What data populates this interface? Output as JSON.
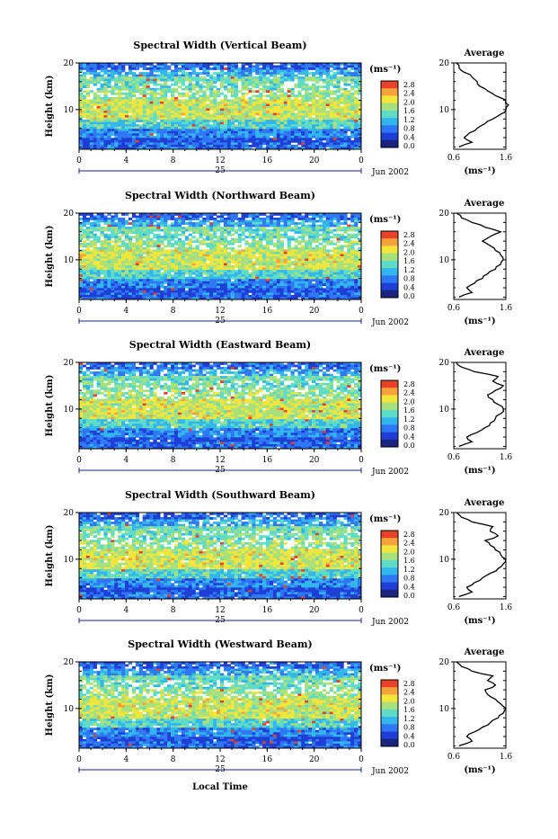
{
  "page": {
    "xlabel": "Local Time"
  },
  "chart_data": [
    {
      "type": "heatmap",
      "title": "Spectral Width (Vertical Beam)",
      "ylabel": "Height (km)",
      "yticks": [
        "20",
        "10"
      ],
      "xticks": [
        "0",
        "4",
        "8",
        "12",
        "16",
        "20",
        "0"
      ],
      "day_label": "25",
      "date_label": "Jun 2002",
      "colorbar": {
        "unit": "(ms⁻¹)",
        "ticks": [
          "2.8",
          "2.4",
          "2.0",
          "1.6",
          "1.2",
          "0.8",
          "0.4",
          "0.0"
        ]
      },
      "average": {
        "title": "Average",
        "xticks": [
          "0.6",
          "1.6"
        ],
        "xlabel": "(ms⁻¹)",
        "yticks": [
          "20",
          "10"
        ],
        "height_km": [
          2,
          3,
          4,
          5,
          6,
          7,
          8,
          9,
          10,
          11,
          12,
          13,
          14,
          15,
          16,
          17,
          18,
          19,
          20
        ],
        "width_ms": [
          0.7,
          0.95,
          0.8,
          0.9,
          1.05,
          1.2,
          1.35,
          1.5,
          1.6,
          1.65,
          1.6,
          1.4,
          1.25,
          1.1,
          1.05,
          0.95,
          0.8,
          0.7,
          0.65
        ]
      }
    },
    {
      "type": "heatmap",
      "title": "Spectral Width (Northward Beam)",
      "ylabel": "Height (km)",
      "yticks": [
        "20",
        "10"
      ],
      "xticks": [
        "0",
        "4",
        "8",
        "12",
        "16",
        "20",
        "0"
      ],
      "day_label": "25",
      "date_label": "Jun 2002",
      "colorbar": {
        "unit": "(ms⁻¹)",
        "ticks": [
          "2.8",
          "2.4",
          "2.0",
          "1.6",
          "1.2",
          "0.8",
          "0.4",
          "0.0"
        ]
      },
      "average": {
        "title": "Average",
        "xticks": [
          "0.6",
          "1.6"
        ],
        "xlabel": "(ms⁻¹)",
        "yticks": [
          "20",
          "10"
        ],
        "height_km": [
          2,
          3,
          4,
          5,
          6,
          7,
          8,
          9,
          10,
          11,
          12,
          13,
          14,
          15,
          16,
          17,
          18,
          19,
          20
        ],
        "width_ms": [
          0.7,
          0.95,
          0.85,
          1.0,
          1.15,
          1.25,
          1.4,
          1.5,
          1.55,
          1.5,
          1.4,
          1.3,
          1.15,
          1.3,
          1.5,
          1.2,
          0.95,
          0.75,
          0.65
        ]
      }
    },
    {
      "type": "heatmap",
      "title": "Spectral Width (Eastward Beam)",
      "ylabel": "Height (km)",
      "yticks": [
        "20",
        "10"
      ],
      "xticks": [
        "0",
        "4",
        "8",
        "12",
        "16",
        "20",
        "0"
      ],
      "day_label": "25",
      "date_label": "Jun 2002",
      "colorbar": {
        "unit": "(ms⁻¹)",
        "ticks": [
          "2.8",
          "2.4",
          "2.0",
          "1.6",
          "1.2",
          "0.8",
          "0.4",
          "0.0"
        ]
      },
      "average": {
        "title": "Average",
        "xticks": [
          "0.6",
          "1.6"
        ],
        "xlabel": "(ms⁻¹)",
        "yticks": [
          "20",
          "10"
        ],
        "height_km": [
          2,
          3,
          4,
          5,
          6,
          7,
          8,
          9,
          10,
          11,
          12,
          13,
          14,
          15,
          16,
          17,
          18,
          19,
          20
        ],
        "width_ms": [
          0.7,
          0.95,
          0.85,
          1.05,
          1.2,
          1.3,
          1.4,
          1.5,
          1.55,
          1.45,
          1.35,
          1.25,
          1.4,
          1.55,
          1.35,
          1.45,
          1.0,
          0.75,
          0.65
        ]
      }
    },
    {
      "type": "heatmap",
      "title": "Spectral Width (Southward Beam)",
      "ylabel": "Height (km)",
      "yticks": [
        "20",
        "10"
      ],
      "xticks": [
        "0",
        "4",
        "8",
        "12",
        "16",
        "20",
        "0"
      ],
      "day_label": "25",
      "date_label": "Jun 2002",
      "colorbar": {
        "unit": "(ms⁻¹)",
        "ticks": [
          "2.8",
          "2.4",
          "2.0",
          "1.6",
          "1.2",
          "0.8",
          "0.4",
          "0.0"
        ]
      },
      "average": {
        "title": "Average",
        "xticks": [
          "0.6",
          "1.6"
        ],
        "xlabel": "(ms⁻¹)",
        "yticks": [
          "20",
          "10"
        ],
        "height_km": [
          2,
          3,
          4,
          5,
          6,
          7,
          8,
          9,
          10,
          11,
          12,
          13,
          14,
          15,
          16,
          17,
          18,
          19,
          20
        ],
        "width_ms": [
          0.7,
          0.95,
          0.85,
          1.0,
          1.15,
          1.3,
          1.45,
          1.55,
          1.6,
          1.5,
          1.4,
          1.3,
          1.2,
          1.45,
          1.3,
          1.35,
          0.95,
          0.75,
          0.65
        ]
      }
    },
    {
      "type": "heatmap",
      "title": "Spectral Width (Westward Beam)",
      "ylabel": "Height (km)",
      "yticks": [
        "20",
        "10"
      ],
      "xticks": [
        "0",
        "4",
        "8",
        "12",
        "16",
        "20",
        "0"
      ],
      "day_label": "25",
      "date_label": "Jun 2002",
      "colorbar": {
        "unit": "(ms⁻¹)",
        "ticks": [
          "2.8",
          "2.4",
          "2.0",
          "1.6",
          "1.2",
          "0.8",
          "0.4",
          "0.0"
        ]
      },
      "average": {
        "title": "Average",
        "xticks": [
          "0.6",
          "1.6"
        ],
        "xlabel": "(ms⁻¹)",
        "yticks": [
          "20",
          "10"
        ],
        "height_km": [
          2,
          3,
          4,
          5,
          6,
          7,
          8,
          9,
          10,
          11,
          12,
          13,
          14,
          15,
          16,
          17,
          18,
          19,
          20
        ],
        "width_ms": [
          0.7,
          0.95,
          0.85,
          1.0,
          1.15,
          1.3,
          1.45,
          1.55,
          1.6,
          1.5,
          1.4,
          1.25,
          1.2,
          1.4,
          1.25,
          1.35,
          0.95,
          0.75,
          0.65
        ]
      }
    }
  ]
}
